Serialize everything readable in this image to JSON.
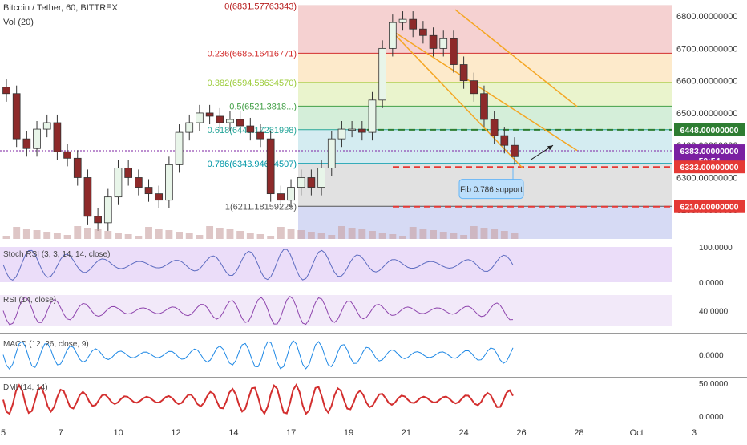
{
  "header": {
    "symbol": "Bitcoin / Tether, 60, BITTREX",
    "volume_label": "Vol (20)"
  },
  "chart_data": {
    "type": "candlestick",
    "ylim": [
      6110,
      6840
    ],
    "price_axis_ticks": [
      "6800.00000000",
      "6700.00000000",
      "6600.00000000",
      "6500.00000000",
      "6400.00000000",
      "6300.00000000",
      "6200.00000000"
    ],
    "price_axis_values": [
      6800,
      6700,
      6600,
      6500,
      6400,
      6300,
      6200
    ],
    "price_badges": [
      {
        "label": "6448.00000000",
        "value": 6448,
        "color": "#2e7d32"
      },
      {
        "label": "6383.00000000",
        "value": 6383,
        "color": "#7b1fa2"
      },
      {
        "label": "50:54",
        "value": 6353,
        "color": "#7b1fa2"
      },
      {
        "label": "6333.00000000",
        "value": 6333,
        "color": "#e53935"
      },
      {
        "label": "6210.00000000",
        "value": 6210,
        "color": "#e53935"
      }
    ],
    "fibonacci": [
      {
        "label": "0(6831.57763343)",
        "value": 6831.57763343,
        "color": "#b71c1c",
        "fill": "#f3c9c9"
      },
      {
        "label": "0.236(6685.16416771)",
        "value": 6685.16416771,
        "color": "#d32f2f",
        "fill": "#fde6c2"
      },
      {
        "label": "0.382(6594.58634570)",
        "value": 6594.5863457,
        "color": "#9ccc3a",
        "fill": "#e6f2c4"
      },
      {
        "label": "0.5(6521.3818...)",
        "value": 6521.38,
        "color": "#43a047",
        "fill": "#cdebd2"
      },
      {
        "label": "0.618(6448.17281998)",
        "value": 6448.17281998,
        "color": "#26a69a",
        "fill": "#cde9ef"
      },
      {
        "label": "0.786(6343.94634507)",
        "value": 6343.94634507,
        "color": "#0097a7",
        "fill": "#dcdcdc"
      },
      {
        "label": "1(6211.18159225)",
        "value": 6211.18159225,
        "color": "#555555",
        "fill": "#cfd3f2"
      }
    ],
    "horizontal_lines": [
      {
        "value": 6448,
        "color": "#2e7d32",
        "style": "dashed"
      },
      {
        "value": 6333,
        "color": "#e53935",
        "style": "dashed"
      },
      {
        "value": 6210,
        "color": "#e53935",
        "style": "dashed"
      },
      {
        "value": 6383,
        "color": "#7b1fa2",
        "style": "dotted"
      }
    ],
    "callout": "Fib 0.786 support",
    "x_ticks": [
      "5",
      "7",
      "10",
      "12",
      "14",
      "17",
      "19",
      "21",
      "24",
      "26",
      "28",
      "Oct",
      "3"
    ],
    "closes": [
      6560,
      6420,
      6390,
      6450,
      6470,
      6380,
      6360,
      6300,
      6180,
      6160,
      6240,
      6330,
      6300,
      6270,
      6250,
      6230,
      6340,
      6440,
      6470,
      6500,
      6490,
      6470,
      6480,
      6460,
      6440,
      6420,
      6250,
      6230,
      6270,
      6300,
      6270,
      6330,
      6420,
      6450,
      6450,
      6440,
      6540,
      6700,
      6780,
      6790,
      6760,
      6740,
      6700,
      6730,
      6650,
      6600,
      6560,
      6480,
      6430,
      6400,
      6365
    ],
    "indicators": {
      "stoch_rsi": {
        "label": "Stoch RSI (3, 3, 14, 14, close)",
        "ticks": [
          "100.0000",
          "0.0000"
        ]
      },
      "rsi": {
        "label": "RSI (14, close)",
        "ticks": [
          "40.0000"
        ]
      },
      "macd": {
        "label": "MACD (12, 26, close, 9)",
        "ticks": [
          "0.0000"
        ]
      },
      "dmi": {
        "label": "DMI (14, 14)",
        "ticks": [
          "50.0000",
          "0.0000"
        ]
      }
    }
  }
}
